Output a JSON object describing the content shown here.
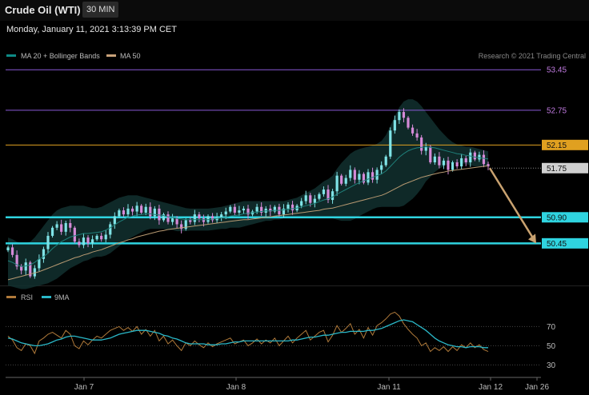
{
  "header": {
    "title": "Crude Oil (WTI)",
    "interval": "30 MIN",
    "timestamp": "Monday, January 11, 2021 3:13:39 PM CET"
  },
  "legend": {
    "items": [
      {
        "label": "MA 20 + Bollinger Bands",
        "color": "#0e8a86"
      },
      {
        "label": "MA 50",
        "color": "#c9a27a"
      }
    ],
    "credit": "Research © 2021 Trading Central"
  },
  "colors": {
    "bull": "#7fe3e6",
    "bear": "#d58ad8",
    "band_fill": "#12302f",
    "ma20": "#1f7f79",
    "ma50": "#b89a72",
    "resistance": "#8a5ad6",
    "pivot": "#e0a020",
    "support": "#2fd4e0",
    "arrow": "#c9a270",
    "rsi": "#b07a3a",
    "rsi_ma": "#2ab8c8"
  },
  "chart_data": [
    {
      "type": "candlestick",
      "y_range": [
        49.75,
        53.55
      ],
      "x_ticks": [
        "Jan 7",
        "Jan 8",
        "Jan 11",
        "Jan 12",
        "Jan 26"
      ],
      "levels": [
        {
          "value": 53.45,
          "label": "53.45",
          "kind": "resistance"
        },
        {
          "value": 52.75,
          "label": "52.75",
          "kind": "resistance"
        },
        {
          "value": 52.15,
          "label": "52.15",
          "kind": "pivot"
        },
        {
          "value": 51.75,
          "label": "51.75",
          "kind": "current"
        },
        {
          "value": 50.9,
          "label": "50.90",
          "kind": "support"
        },
        {
          "value": 50.45,
          "label": "50.45",
          "kind": "support"
        }
      ],
      "close": [
        50.38,
        50.25,
        50.05,
        49.98,
        50.12,
        49.88,
        50.02,
        50.18,
        50.35,
        50.58,
        50.72,
        50.78,
        50.65,
        50.8,
        50.72,
        50.48,
        50.42,
        50.55,
        50.45,
        50.52,
        50.58,
        50.52,
        50.6,
        50.78,
        50.92,
        51.02,
        50.95,
        51.05,
        51.0,
        51.1,
        50.98,
        51.08,
        50.92,
        51.05,
        50.85,
        50.95,
        50.82,
        50.88,
        50.78,
        50.7,
        50.85,
        50.82,
        50.95,
        50.88,
        50.82,
        50.92,
        50.85,
        50.9,
        50.95,
        51.0,
        51.08,
        50.98,
        51.02,
        51.05,
        50.95,
        51.0,
        51.08,
        50.98,
        51.05,
        51.0,
        51.08,
        50.95,
        51.05,
        51.12,
        51.02,
        51.1,
        51.18,
        51.28,
        51.15,
        51.22,
        51.3,
        51.38,
        51.2,
        51.35,
        51.62,
        51.48,
        51.58,
        51.72,
        51.55,
        51.65,
        51.5,
        51.68,
        51.55,
        51.72,
        51.8,
        51.95,
        52.4,
        52.58,
        52.72,
        52.62,
        52.45,
        52.35,
        52.28,
        52.05,
        52.12,
        51.85,
        51.95,
        51.8,
        51.88,
        51.72,
        51.85,
        51.78,
        51.92,
        51.85,
        52.02,
        51.9,
        51.98,
        51.82,
        51.78
      ],
      "ma20": [
        50.15,
        50.12,
        50.08,
        50.05,
        50.06,
        50.08,
        50.12,
        50.18,
        50.22,
        50.28,
        50.36,
        50.42,
        50.48,
        50.52,
        50.56,
        50.58,
        50.6,
        50.62,
        50.62,
        50.63,
        50.64,
        50.65,
        50.68,
        50.72,
        50.77,
        50.82,
        50.86,
        50.9,
        50.92,
        50.94,
        50.95,
        50.96,
        50.96,
        50.95,
        50.94,
        50.93,
        50.91,
        50.9,
        50.88,
        50.87,
        50.86,
        50.86,
        50.86,
        50.86,
        50.86,
        50.86,
        50.87,
        50.88,
        50.89,
        50.9,
        50.92,
        50.93,
        50.94,
        50.96,
        50.97,
        50.98,
        50.99,
        51.0,
        51.01,
        51.01,
        51.02,
        51.02,
        51.03,
        51.04,
        51.05,
        51.06,
        51.08,
        51.1,
        51.12,
        51.14,
        51.17,
        51.2,
        51.22,
        51.25,
        51.3,
        51.34,
        51.38,
        51.42,
        51.46,
        51.5,
        51.53,
        51.56,
        51.59,
        51.62,
        51.65,
        51.7,
        51.78,
        51.86,
        51.94,
        52.0,
        52.05,
        52.08,
        52.1,
        52.11,
        52.12,
        52.11,
        52.1,
        52.08,
        52.06,
        52.04,
        52.02,
        52.0,
        51.99,
        51.97,
        51.96,
        51.94,
        51.93,
        51.92,
        51.91
      ],
      "bb_upper": [
        50.55,
        50.52,
        50.48,
        50.45,
        50.46,
        50.48,
        50.55,
        50.65,
        50.75,
        50.85,
        50.95,
        51.02,
        51.06,
        51.08,
        51.1,
        51.1,
        51.1,
        51.1,
        51.08,
        51.06,
        51.06,
        51.08,
        51.12,
        51.16,
        51.2,
        51.24,
        51.26,
        51.28,
        51.28,
        51.28,
        51.26,
        51.24,
        51.22,
        51.2,
        51.18,
        51.16,
        51.14,
        51.12,
        51.1,
        51.08,
        51.06,
        51.05,
        51.05,
        51.05,
        51.05,
        51.05,
        51.06,
        51.07,
        51.08,
        51.1,
        51.12,
        51.14,
        51.16,
        51.18,
        51.18,
        51.18,
        51.18,
        51.18,
        51.18,
        51.18,
        51.18,
        51.18,
        51.18,
        51.2,
        51.22,
        51.24,
        51.28,
        51.32,
        51.36,
        51.4,
        51.46,
        51.52,
        51.56,
        51.62,
        51.74,
        51.84,
        51.92,
        52.0,
        52.05,
        52.08,
        52.1,
        52.12,
        52.14,
        52.17,
        52.22,
        52.32,
        52.48,
        52.64,
        52.8,
        52.9,
        52.94,
        52.94,
        52.9,
        52.82,
        52.72,
        52.62,
        52.52,
        52.42,
        52.34,
        52.26,
        52.2,
        52.16,
        52.14,
        52.12,
        52.12,
        52.1,
        52.08,
        52.06,
        52.04
      ],
      "bb_lower": [
        49.72,
        49.7,
        49.68,
        49.66,
        49.66,
        49.68,
        49.7,
        49.72,
        49.74,
        49.76,
        49.8,
        49.84,
        49.9,
        49.96,
        50.02,
        50.06,
        50.1,
        50.14,
        50.16,
        50.2,
        50.22,
        50.22,
        50.24,
        50.28,
        50.34,
        50.4,
        50.46,
        50.52,
        50.56,
        50.6,
        50.64,
        50.68,
        50.7,
        50.7,
        50.7,
        50.7,
        50.68,
        50.68,
        50.66,
        50.66,
        50.66,
        50.67,
        50.67,
        50.67,
        50.67,
        50.67,
        50.68,
        50.69,
        50.7,
        50.7,
        50.72,
        50.72,
        50.72,
        50.74,
        50.76,
        50.78,
        50.8,
        50.82,
        50.84,
        50.84,
        50.86,
        50.86,
        50.88,
        50.88,
        50.88,
        50.88,
        50.88,
        50.88,
        50.88,
        50.88,
        50.88,
        50.88,
        50.88,
        50.88,
        50.86,
        50.84,
        50.84,
        50.84,
        50.87,
        50.92,
        50.96,
        51.0,
        51.04,
        51.07,
        51.08,
        51.08,
        51.08,
        51.08,
        51.08,
        51.1,
        51.16,
        51.22,
        51.3,
        51.4,
        51.52,
        51.6,
        51.68,
        51.74,
        51.78,
        51.82,
        51.84,
        51.84,
        51.84,
        51.82,
        51.8,
        51.78,
        51.78,
        51.78,
        51.78
      ],
      "ma50": [
        49.82,
        49.84,
        49.86,
        49.88,
        49.9,
        49.92,
        49.94,
        49.96,
        49.99,
        50.02,
        50.05,
        50.08,
        50.11,
        50.14,
        50.17,
        50.2,
        50.22,
        50.25,
        50.27,
        50.3,
        50.32,
        50.34,
        50.37,
        50.4,
        50.43,
        50.46,
        50.48,
        50.51,
        50.53,
        50.56,
        50.58,
        50.6,
        50.62,
        50.64,
        50.66,
        50.67,
        50.69,
        50.7,
        50.71,
        50.72,
        50.73,
        50.74,
        50.75,
        50.76,
        50.77,
        50.78,
        50.79,
        50.8,
        50.81,
        50.82,
        50.83,
        50.84,
        50.85,
        50.86,
        50.86,
        50.87,
        50.88,
        50.89,
        50.9,
        50.91,
        50.92,
        50.93,
        50.94,
        50.95,
        50.96,
        50.97,
        50.98,
        50.99,
        51.0,
        51.01,
        51.02,
        51.04,
        51.05,
        51.06,
        51.08,
        51.1,
        51.12,
        51.14,
        51.16,
        51.18,
        51.2,
        51.22,
        51.24,
        51.26,
        51.28,
        51.31,
        51.35,
        51.39,
        51.43,
        51.47,
        51.5,
        51.53,
        51.56,
        51.59,
        51.61,
        51.63,
        51.65,
        51.67,
        51.68,
        51.7,
        51.71,
        51.72,
        51.73,
        51.74,
        51.75,
        51.76,
        51.77,
        51.78,
        51.79
      ],
      "forecast": {
        "from": 51.75,
        "to": 50.45
      }
    },
    {
      "type": "line",
      "title": "RSI",
      "y_ticks": [
        70,
        50,
        30
      ],
      "y_range": [
        22,
        92
      ],
      "series": [
        {
          "name": "RSI",
          "values": [
            60,
            56,
            48,
            45,
            52,
            50,
            42,
            55,
            58,
            62,
            64,
            61,
            58,
            66,
            62,
            50,
            47,
            55,
            51,
            56,
            60,
            58,
            62,
            66,
            68,
            70,
            66,
            69,
            65,
            70,
            62,
            67,
            60,
            66,
            55,
            60,
            52,
            56,
            50,
            45,
            53,
            50,
            55,
            51,
            48,
            53,
            49,
            52,
            54,
            56,
            58,
            52,
            54,
            56,
            50,
            53,
            57,
            52,
            56,
            53,
            58,
            50,
            55,
            60,
            53,
            58,
            62,
            66,
            56,
            60,
            64,
            66,
            54,
            61,
            71,
            64,
            68,
            73,
            62,
            67,
            58,
            69,
            61,
            71,
            74,
            78,
            83,
            85,
            81,
            73,
            67,
            62,
            58,
            50,
            53,
            44,
            48,
            45,
            49,
            44,
            49,
            45,
            51,
            48,
            53,
            48,
            51,
            46,
            44
          ]
        },
        {
          "name": "9MA",
          "values": [
            58,
            57,
            55,
            53,
            52,
            51,
            50,
            50,
            51,
            52,
            54,
            56,
            57,
            59,
            60,
            60,
            59,
            58,
            57,
            56,
            56,
            56,
            57,
            58,
            60,
            62,
            63,
            64,
            65,
            66,
            66,
            66,
            65,
            64,
            63,
            61,
            60,
            58,
            57,
            55,
            53,
            52,
            52,
            52,
            52,
            51,
            51,
            51,
            52,
            52,
            53,
            54,
            54,
            55,
            55,
            55,
            55,
            55,
            55,
            55,
            55,
            55,
            55,
            55,
            56,
            56,
            57,
            58,
            59,
            59,
            60,
            61,
            61,
            62,
            63,
            64,
            64,
            65,
            65,
            65,
            65,
            66,
            66,
            67,
            68,
            70,
            72,
            74,
            76,
            77,
            76,
            75,
            72,
            69,
            66,
            62,
            58,
            55,
            53,
            51,
            50,
            49,
            49,
            48,
            49,
            49,
            49,
            48,
            48
          ]
        }
      ]
    }
  ]
}
